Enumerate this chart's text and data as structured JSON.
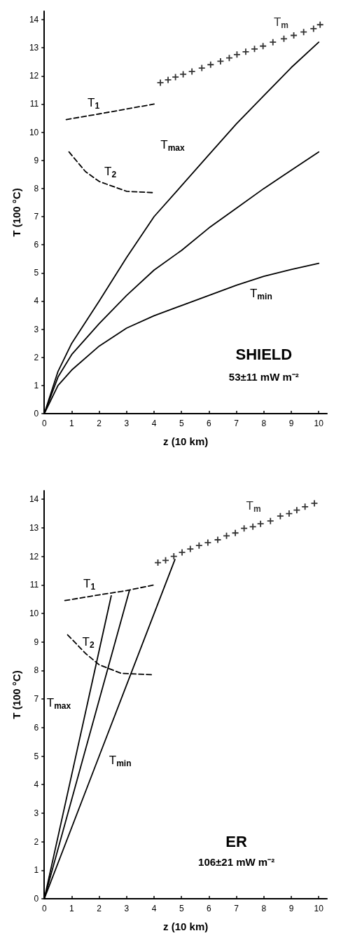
{
  "chart_data": [
    {
      "type": "line",
      "xlabel": "z (10 km)",
      "ylabel": "T (100 °C)",
      "xlim": [
        0,
        10.3
      ],
      "ylim": [
        0,
        14.3
      ],
      "xticks": [
        0,
        1,
        2,
        3,
        4,
        5,
        6,
        7,
        8,
        9,
        10
      ],
      "yticks": [
        0,
        1,
        2,
        3,
        4,
        5,
        6,
        7,
        8,
        9,
        10,
        11,
        12,
        13,
        14
      ],
      "annotations": [
        "SHIELD",
        "53±11 mW m⁻²"
      ],
      "series": [
        {
          "name": "T$_{max}$",
          "color": "#000000",
          "marker": "none",
          "line_style": "solid",
          "x": [
            0,
            0.5,
            1,
            2,
            3,
            4,
            5,
            6,
            7,
            8,
            9,
            10
          ],
          "values": [
            0,
            1.5,
            2.5,
            4.0,
            5.55,
            7.0,
            8.1,
            9.2,
            10.3,
            11.3,
            12.3,
            13.2
          ]
        },
        {
          "color": "#000000",
          "marker": "none",
          "line_style": "solid",
          "x": [
            0,
            0.5,
            1,
            2,
            3,
            4,
            5,
            6,
            7,
            8,
            9,
            10
          ],
          "values": [
            0,
            1.3,
            2.1,
            3.2,
            4.2,
            5.1,
            5.8,
            6.6,
            7.3,
            8.0,
            8.65,
            9.3
          ]
        },
        {
          "name": "T$_{min}$",
          "color": "#000000",
          "marker": "none",
          "line_style": "solid",
          "x": [
            0,
            0.5,
            1,
            2,
            3,
            4,
            5,
            6,
            7,
            8,
            9,
            10
          ],
          "values": [
            0,
            1.0,
            1.55,
            2.4,
            3.04,
            3.48,
            3.84,
            4.2,
            4.56,
            4.88,
            5.12,
            5.34
          ]
        },
        {
          "name": "T$_{1}$",
          "color": "#000000",
          "marker": "none",
          "line_style": "dashed",
          "x": [
            0.8,
            2,
            4
          ],
          "values": [
            10.45,
            10.65,
            11.0
          ]
        },
        {
          "name": "T$_{2}$",
          "color": "#000000",
          "marker": "none",
          "line_style": "dashed",
          "x": [
            0.9,
            1.5,
            2,
            3,
            4
          ],
          "values": [
            9.3,
            8.6,
            8.25,
            7.9,
            7.85
          ]
        },
        {
          "name": "T$_{m}$",
          "type": "scatter",
          "color": "#000000",
          "marker": "cross",
          "x": [
            4.23,
            4.51,
            4.78,
            5.06,
            5.38,
            5.74,
            6.06,
            6.42,
            6.74,
            7.02,
            7.34,
            7.66,
            7.97,
            8.33,
            8.73,
            9.09,
            9.45,
            9.81,
            10.05
          ],
          "values": [
            11.76,
            11.86,
            11.96,
            12.06,
            12.16,
            12.28,
            12.4,
            12.52,
            12.64,
            12.76,
            12.86,
            12.96,
            13.06,
            13.2,
            13.32,
            13.44,
            13.56,
            13.68,
            13.82
          ]
        }
      ]
    },
    {
      "type": "line",
      "xlabel": "z (10 km)",
      "ylabel": "T (100 °C)",
      "xlim": [
        0,
        10.3
      ],
      "ylim": [
        0,
        14.3
      ],
      "xticks": [
        0,
        1,
        2,
        3,
        4,
        5,
        6,
        7,
        8,
        9,
        10
      ],
      "yticks": [
        0,
        1,
        2,
        3,
        4,
        5,
        6,
        7,
        8,
        9,
        10,
        11,
        12,
        13,
        14
      ],
      "annotations": [
        "ER",
        "106±21 mW m⁻²"
      ],
      "series": [
        {
          "name": "T$_{max}$",
          "color": "#000000",
          "marker": "none",
          "line_style": "solid",
          "x": [
            0,
            1.6,
            2.44
          ],
          "values": [
            0,
            6.96,
            10.62
          ]
        },
        {
          "color": "#000000",
          "marker": "none",
          "line_style": "solid",
          "x": [
            0,
            3.1
          ],
          "values": [
            0,
            10.8
          ]
        },
        {
          "name": "T$_{min}$",
          "color": "#000000",
          "marker": "none",
          "line_style": "solid",
          "x": [
            0,
            2,
            4.76
          ],
          "values": [
            0,
            5.0,
            11.89
          ]
        },
        {
          "name": "T$_{1}$",
          "color": "#000000",
          "marker": "none",
          "line_style": "dashed",
          "x": [
            0.75,
            2,
            3,
            4
          ],
          "values": [
            10.45,
            10.65,
            10.8,
            11.0
          ]
        },
        {
          "name": "T$_{2}$",
          "color": "#000000",
          "marker": "none",
          "line_style": "dashed",
          "x": [
            0.85,
            1.5,
            2,
            2.8,
            4
          ],
          "values": [
            9.25,
            8.6,
            8.2,
            7.9,
            7.85
          ]
        },
        {
          "name": "T$_{m}$",
          "type": "scatter",
          "color": "#000000",
          "marker": "cross",
          "x": [
            4.14,
            4.42,
            4.72,
            5.02,
            5.32,
            5.64,
            5.96,
            6.32,
            6.64,
            6.96,
            7.28,
            7.6,
            7.88,
            8.24,
            8.6,
            8.92,
            9.2,
            9.5,
            9.84
          ],
          "values": [
            11.78,
            11.86,
            12.0,
            12.14,
            12.26,
            12.38,
            12.48,
            12.58,
            12.72,
            12.82,
            12.98,
            13.04,
            13.14,
            13.24,
            13.41,
            13.5,
            13.62,
            13.74,
            13.86
          ]
        }
      ]
    }
  ]
}
